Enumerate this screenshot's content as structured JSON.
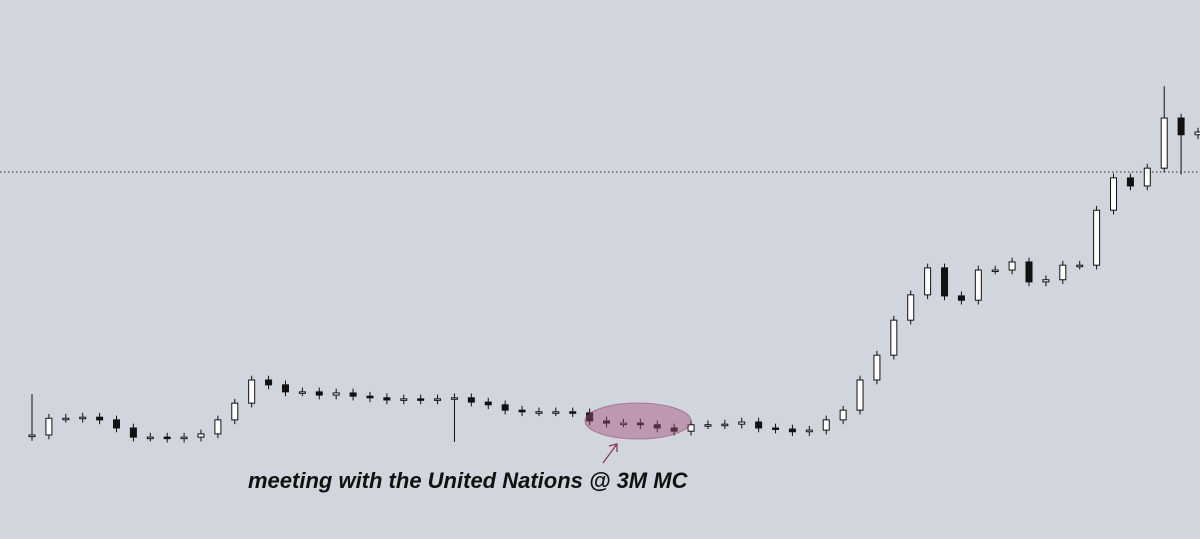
{
  "chart_data": {
    "type": "candlestick",
    "annotation": "meeting with the United Nations @ 3M MC",
    "ylim": [
      0,
      100
    ],
    "reference_line": 68.1,
    "up_color": "#ffffff",
    "down_color": "#111111",
    "open": [
      19.0,
      19.3,
      22.4,
      22.4,
      22.6,
      22.1,
      20.6,
      18.9,
      18.9,
      18.7,
      18.9,
      19.5,
      22.1,
      25.2,
      29.5,
      28.6,
      27.3,
      27.3,
      26.7,
      27.1,
      26.5,
      26.2,
      25.8,
      26.0,
      25.8,
      26.0,
      26.2,
      25.4,
      24.9,
      23.9,
      23.6,
      23.6,
      23.6,
      23.4,
      21.9,
      21.5,
      21.5,
      21.2,
      20.6,
      20.0,
      21.2,
      21.2,
      21.3,
      21.7,
      20.6,
      20.4,
      19.9,
      20.2,
      22.1,
      23.9,
      29.5,
      34.1,
      40.6,
      45.3,
      50.3,
      45.1,
      44.3,
      49.9,
      49.9,
      51.4,
      47.7,
      48.1,
      50.8,
      50.8,
      61.0,
      67.0,
      65.5,
      68.8,
      78.1,
      75.0
    ],
    "high": [
      26.9,
      23.2,
      23.2,
      23.4,
      23.4,
      22.9,
      21.4,
      19.7,
      19.7,
      19.7,
      20.3,
      22.9,
      26.0,
      30.3,
      30.3,
      29.4,
      28.1,
      28.1,
      27.9,
      27.9,
      27.3,
      27.0,
      26.8,
      26.8,
      26.8,
      27.0,
      27.0,
      26.2,
      25.7,
      24.7,
      24.4,
      24.4,
      24.4,
      24.2,
      22.7,
      22.3,
      22.3,
      22.0,
      21.4,
      22.0,
      22.0,
      22.1,
      22.5,
      22.5,
      21.4,
      21.2,
      21.0,
      22.9,
      24.7,
      30.3,
      34.9,
      41.4,
      46.1,
      51.1,
      51.1,
      45.9,
      50.7,
      50.7,
      52.2,
      52.2,
      48.9,
      51.6,
      51.6,
      61.8,
      67.8,
      67.8,
      69.6,
      84.0,
      78.9,
      76.3
    ],
    "low": [
      18.2,
      18.5,
      21.6,
      21.6,
      21.3,
      19.8,
      18.1,
      18.1,
      17.9,
      17.9,
      18.1,
      18.7,
      21.3,
      24.4,
      27.8,
      26.5,
      26.5,
      25.9,
      25.9,
      25.7,
      25.4,
      25.0,
      25.0,
      25.0,
      25.0,
      18.0,
      24.6,
      24.1,
      23.1,
      22.8,
      22.8,
      22.8,
      22.6,
      21.1,
      20.7,
      20.7,
      20.4,
      19.8,
      19.2,
      19.2,
      20.4,
      20.4,
      20.5,
      19.8,
      19.6,
      19.1,
      19.1,
      19.4,
      21.3,
      23.1,
      28.7,
      33.3,
      39.8,
      44.5,
      44.3,
      43.5,
      43.5,
      49.1,
      49.1,
      46.9,
      46.9,
      47.3,
      50.0,
      50.0,
      60.2,
      64.7,
      64.7,
      68.0,
      67.6,
      74.2
    ],
    "close": [
      19.3,
      22.4,
      22.4,
      22.6,
      22.1,
      20.6,
      18.9,
      18.9,
      18.7,
      18.9,
      19.5,
      22.1,
      25.2,
      29.5,
      28.6,
      27.3,
      27.3,
      26.7,
      27.1,
      26.5,
      26.2,
      25.8,
      26.0,
      25.8,
      26.0,
      26.2,
      25.4,
      24.9,
      23.9,
      23.6,
      23.6,
      23.6,
      23.4,
      21.9,
      21.5,
      21.5,
      21.2,
      20.6,
      20.0,
      21.2,
      21.2,
      21.3,
      21.7,
      20.6,
      20.4,
      19.9,
      20.2,
      22.1,
      23.9,
      29.5,
      34.1,
      40.6,
      45.3,
      50.3,
      45.1,
      44.3,
      49.9,
      49.9,
      51.4,
      47.7,
      48.1,
      50.8,
      50.8,
      61.0,
      67.0,
      65.5,
      68.8,
      78.1,
      75.0,
      75.5
    ]
  }
}
